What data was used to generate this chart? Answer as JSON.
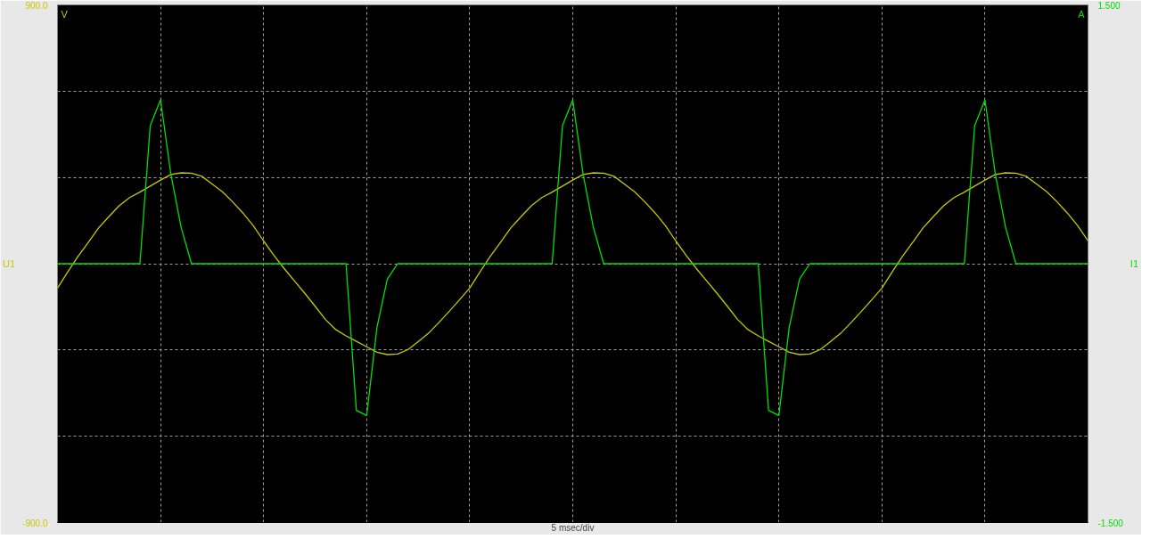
{
  "chart_data": {
    "type": "line",
    "xlabel": "5 msec/div",
    "categories": [
      null,
      null,
      null,
      null,
      null,
      null,
      null,
      null,
      null,
      null,
      null,
      null,
      null,
      null,
      null,
      null,
      null,
      null,
      null,
      null,
      null,
      null,
      null,
      null,
      null,
      null,
      null,
      null,
      null,
      null,
      null,
      null,
      null,
      null,
      null,
      null,
      null,
      null,
      null,
      null,
      null,
      null,
      null,
      null,
      null,
      null,
      null,
      null,
      null,
      null,
      null,
      null,
      null,
      null,
      null,
      null,
      null,
      null,
      null,
      null,
      null,
      null,
      null,
      null,
      null,
      null,
      null,
      null,
      null,
      null,
      null,
      null,
      null,
      null,
      null,
      null,
      null,
      null,
      null,
      null,
      null,
      null,
      null,
      null,
      null,
      null,
      null,
      null,
      null,
      null,
      null,
      null,
      null,
      null,
      null,
      null,
      null,
      null,
      null,
      null,
      null
    ],
    "ylabel": "U1",
    "y2label": "I1",
    "annotations": [
      "V",
      "A"
    ],
    "ylim": [
      -900,
      900
    ],
    "yticks": [
      {
        "value": -900,
        "label": "-900.0"
      },
      {
        "value": -600,
        "label": null
      },
      {
        "value": -300,
        "label": null
      },
      {
        "value": 0,
        "label": null
      },
      {
        "value": 300,
        "label": null
      },
      {
        "value": 600,
        "label": null
      },
      {
        "value": 900,
        "label": "900.0"
      }
    ],
    "y2lim": [
      -1.5,
      1.5
    ],
    "y2ticks": [
      {
        "value": -1.5,
        "label": "-1.500"
      },
      {
        "value": 1.5,
        "label": "1.500"
      }
    ],
    "grid": true,
    "marker": "none",
    "line_style": "solid",
    "series": [
      {
        "color": "#c8c800",
        "values": [
          -85,
          -28,
          26,
          75,
          125,
          164,
          202,
          230,
          249,
          270,
          291,
          310,
          316,
          315,
          304,
          277,
          250,
          215,
          176,
          132,
          79,
          29,
          -17,
          -60,
          -103,
          -148,
          -194,
          -229,
          -251,
          -270,
          -289,
          -308,
          -316,
          -314,
          -299,
          -271,
          -242,
          -205,
          -166,
          -126,
          -85,
          -28,
          26,
          75,
          125,
          164,
          202,
          230,
          249,
          270,
          291,
          310,
          316,
          315,
          304,
          277,
          250,
          215,
          176,
          132,
          79,
          29,
          -17,
          -60,
          -103,
          -148,
          -194,
          -229,
          -251,
          -270,
          -289,
          -308,
          -316,
          -314,
          -299,
          -271,
          -242,
          -205,
          -166,
          -126,
          -85,
          -28,
          26,
          75,
          125,
          164,
          202,
          230,
          249,
          270,
          291,
          310,
          316,
          315,
          304,
          277,
          250,
          215,
          176,
          132,
          79
        ]
      },
      {
        "color": "#00e000",
        "axis": "y2",
        "values": [
          0,
          0,
          0,
          0,
          0,
          0,
          0,
          0,
          0,
          0.8,
          0.95,
          0.52,
          0.21,
          0,
          0,
          0,
          0,
          0,
          0,
          0,
          0,
          0,
          0,
          0,
          0,
          0,
          0,
          0,
          0,
          -0.85,
          -0.88,
          -0.37,
          -0.09,
          0,
          0,
          0,
          0,
          0,
          0,
          0,
          0,
          0,
          0,
          0,
          0,
          0,
          0,
          0,
          0,
          0.8,
          0.95,
          0.52,
          0.21,
          0,
          0,
          0,
          0,
          0,
          0,
          0,
          0,
          0,
          0,
          0,
          0,
          0,
          0,
          0,
          0,
          -0.85,
          -0.88,
          -0.37,
          -0.09,
          0,
          0,
          0,
          0,
          0,
          0,
          0,
          0,
          0,
          0,
          0,
          0,
          0,
          0,
          0,
          0,
          0.8,
          0.95,
          0.52,
          0.21,
          0,
          0,
          0,
          0,
          0,
          0,
          0,
          0
        ]
      }
    ]
  }
}
